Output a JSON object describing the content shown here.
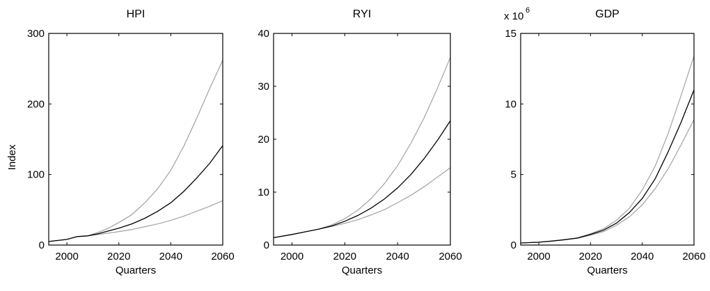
{
  "figure": {
    "ylabel": "Index"
  },
  "chart_data": [
    {
      "type": "line",
      "title": "HPI",
      "xlabel": "Quarters",
      "ylabel": "Index",
      "xlim": [
        1993,
        2060
      ],
      "ylim": [
        0,
        300
      ],
      "xticks": [
        2000,
        2020,
        2040,
        2060
      ],
      "yticks": [
        0,
        100,
        200,
        300
      ],
      "multiplier": "",
      "multiplier_exponent": "",
      "grid": false,
      "series": [
        {
          "role": "upper",
          "color": "#9a9a9a",
          "x": [
            1993,
            2000,
            2004,
            2008,
            2012,
            2016,
            2020,
            2025,
            2030,
            2035,
            2040,
            2045,
            2050,
            2055,
            2060
          ],
          "y": [
            5,
            8,
            12,
            13,
            18,
            24,
            32,
            43,
            60,
            80,
            106,
            140,
            180,
            222,
            262
          ]
        },
        {
          "role": "median",
          "color": "#000000",
          "x": [
            1993,
            2000,
            2004,
            2008,
            2012,
            2016,
            2020,
            2025,
            2030,
            2035,
            2040,
            2045,
            2050,
            2055,
            2060
          ],
          "y": [
            5,
            8,
            12,
            13,
            16,
            20,
            24,
            30,
            38,
            48,
            60,
            76,
            95,
            116,
            141
          ]
        },
        {
          "role": "lower",
          "color": "#9a9a9a",
          "x": [
            1993,
            2000,
            2004,
            2008,
            2012,
            2016,
            2020,
            2025,
            2030,
            2035,
            2040,
            2045,
            2050,
            2055,
            2060
          ],
          "y": [
            5,
            8,
            12,
            13,
            15,
            17,
            19,
            22,
            26,
            30,
            35,
            41,
            48,
            55,
            63
          ]
        }
      ]
    },
    {
      "type": "line",
      "title": "RYI",
      "xlabel": "Quarters",
      "ylabel": "",
      "xlim": [
        1993,
        2060
      ],
      "ylim": [
        0,
        40
      ],
      "xticks": [
        2000,
        2020,
        2040,
        2060
      ],
      "yticks": [
        0,
        10,
        20,
        30,
        40
      ],
      "multiplier": "",
      "multiplier_exponent": "",
      "grid": false,
      "series": [
        {
          "role": "upper",
          "color": "#9a9a9a",
          "x": [
            1993,
            2000,
            2005,
            2010,
            2015,
            2020,
            2025,
            2030,
            2035,
            2040,
            2045,
            2050,
            2055,
            2060
          ],
          "y": [
            1.4,
            2.0,
            2.5,
            3.0,
            3.8,
            5.0,
            6.6,
            8.8,
            11.6,
            15.0,
            19.2,
            24.0,
            29.5,
            35.5
          ]
        },
        {
          "role": "median",
          "color": "#000000",
          "x": [
            1993,
            2000,
            2005,
            2010,
            2015,
            2020,
            2025,
            2030,
            2035,
            2040,
            2045,
            2050,
            2055,
            2060
          ],
          "y": [
            1.4,
            2.0,
            2.5,
            3.0,
            3.6,
            4.5,
            5.6,
            7.0,
            8.7,
            10.8,
            13.3,
            16.3,
            19.7,
            23.5
          ]
        },
        {
          "role": "lower",
          "color": "#9a9a9a",
          "x": [
            1993,
            2000,
            2005,
            2010,
            2015,
            2020,
            2025,
            2030,
            2035,
            2040,
            2045,
            2050,
            2055,
            2060
          ],
          "y": [
            1.4,
            2.0,
            2.5,
            3.0,
            3.5,
            4.1,
            4.8,
            5.7,
            6.7,
            8.0,
            9.4,
            11.0,
            12.8,
            14.6
          ]
        }
      ]
    },
    {
      "type": "line",
      "title": "GDP",
      "xlabel": "Quarters",
      "ylabel": "",
      "xlim": [
        1993,
        2060
      ],
      "ylim": [
        0,
        15
      ],
      "xticks": [
        2000,
        2020,
        2040,
        2060
      ],
      "yticks": [
        0,
        5,
        10,
        15
      ],
      "multiplier": "x 10",
      "multiplier_exponent": "6",
      "grid": false,
      "series": [
        {
          "role": "upper",
          "color": "#9a9a9a",
          "x": [
            1993,
            2000,
            2005,
            2010,
            2015,
            2020,
            2025,
            2030,
            2035,
            2040,
            2045,
            2050,
            2055,
            2060
          ],
          "y": [
            0.15,
            0.2,
            0.28,
            0.38,
            0.52,
            0.8,
            1.15,
            1.75,
            2.6,
            3.9,
            5.6,
            7.9,
            10.6,
            13.4
          ]
        },
        {
          "role": "median",
          "color": "#000000",
          "x": [
            1993,
            2000,
            2005,
            2010,
            2015,
            2020,
            2025,
            2030,
            2035,
            2040,
            2045,
            2050,
            2055,
            2060
          ],
          "y": [
            0.15,
            0.2,
            0.28,
            0.38,
            0.5,
            0.75,
            1.05,
            1.55,
            2.3,
            3.3,
            4.7,
            6.6,
            8.7,
            11.0
          ]
        },
        {
          "role": "lower",
          "color": "#9a9a9a",
          "x": [
            1993,
            2000,
            2005,
            2010,
            2015,
            2020,
            2025,
            2030,
            2035,
            2040,
            2045,
            2050,
            2055,
            2060
          ],
          "y": [
            0.15,
            0.2,
            0.28,
            0.38,
            0.48,
            0.7,
            0.95,
            1.4,
            2.0,
            2.85,
            4.0,
            5.4,
            7.1,
            8.9
          ]
        }
      ]
    }
  ]
}
